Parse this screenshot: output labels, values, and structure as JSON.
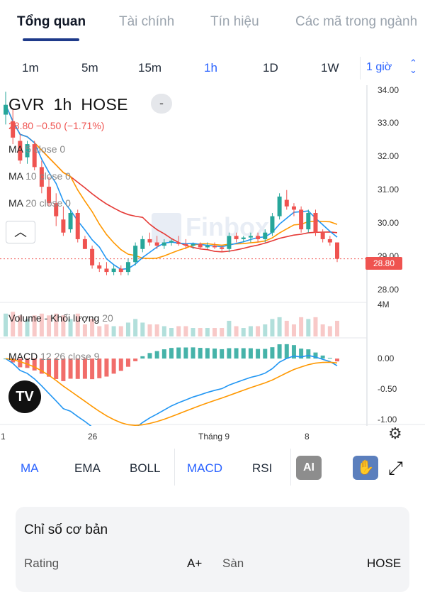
{
  "tabs": [
    "Tổng quan",
    "Tài chính",
    "Tín hiệu",
    "Các mã trong ngành"
  ],
  "intervals": [
    "1m",
    "5m",
    "15m",
    "1h",
    "1D",
    "1W"
  ],
  "interval_select": "1 giờ",
  "chart": {
    "symbol": "GVR",
    "interval": "1h",
    "exchange": "HOSE",
    "collapse_symbol": "-",
    "quote": "28.80  −0.50 (−1.71%)",
    "ma": [
      {
        "name": "MA",
        "params": "5 close 0",
        "color": "#2196f3"
      },
      {
        "name": "MA",
        "params": "10 close 0",
        "color": "#ff9800"
      },
      {
        "name": "MA",
        "params": "20 close 0",
        "color": "#e53935"
      }
    ],
    "volume": {
      "name": "Volume - Khối lượng",
      "params": "20"
    },
    "macd": {
      "name": "MACD",
      "params": "12 26 close 9"
    },
    "watermark": "Finbox",
    "logo": "TV",
    "price_axis": [
      "34.00",
      "33.00",
      "32.00",
      "31.00",
      "30.00",
      "29.00",
      "28.00"
    ],
    "last_price_tag": "28.80",
    "volume_axis": "4M",
    "macd_axis": [
      "0.00",
      "-0.50",
      "-1.00"
    ],
    "x_axis": [
      "1",
      "26",
      "Tháng 9",
      "8"
    ],
    "colors": {
      "up": "#26a69a",
      "down": "#ef5350",
      "ma5": "#2196f3",
      "ma10": "#ff9800",
      "ma20": "#e53935"
    }
  },
  "chart_data": {
    "type": "candlestick",
    "ohlc": [
      [
        33.2,
        33.9,
        32.9,
        33.5
      ],
      [
        33.0,
        33.4,
        32.3,
        32.5
      ],
      [
        32.4,
        32.6,
        31.7,
        31.8
      ],
      [
        31.9,
        32.4,
        31.7,
        32.3
      ],
      [
        32.3,
        32.4,
        31.5,
        31.6
      ],
      [
        31.6,
        31.8,
        30.8,
        31.0
      ],
      [
        31.0,
        31.3,
        30.4,
        30.5
      ],
      [
        30.5,
        30.8,
        29.8,
        30.1
      ],
      [
        30.0,
        30.4,
        29.5,
        29.6
      ],
      [
        29.7,
        30.3,
        29.6,
        30.2
      ],
      [
        30.2,
        30.3,
        29.3,
        29.4
      ],
      [
        29.4,
        29.5,
        29.1,
        29.1
      ],
      [
        29.1,
        29.2,
        28.5,
        28.6
      ],
      [
        28.6,
        28.7,
        28.4,
        28.5
      ],
      [
        28.5,
        28.7,
        28.3,
        28.4
      ],
      [
        28.4,
        28.6,
        28.3,
        28.5
      ],
      [
        28.5,
        28.6,
        28.3,
        28.4
      ],
      [
        28.4,
        28.8,
        28.3,
        28.7
      ],
      [
        28.7,
        29.3,
        28.6,
        29.2
      ],
      [
        29.1,
        29.5,
        29.0,
        29.4
      ],
      [
        29.4,
        29.6,
        29.2,
        29.3
      ],
      [
        29.3,
        29.5,
        29.1,
        29.2
      ],
      [
        29.2,
        29.4,
        29.1,
        29.3
      ],
      [
        29.3,
        29.4,
        29.2,
        29.35
      ],
      [
        29.3,
        29.5,
        29.2,
        29.25
      ],
      [
        29.25,
        29.4,
        29.1,
        29.2
      ],
      [
        29.2,
        29.3,
        29.1,
        29.25
      ],
      [
        29.25,
        29.3,
        29.1,
        29.15
      ],
      [
        29.15,
        29.3,
        29.1,
        29.2
      ],
      [
        29.2,
        29.3,
        29.1,
        29.15
      ],
      [
        29.15,
        29.2,
        29.0,
        29.1
      ],
      [
        29.1,
        29.6,
        29.0,
        29.5
      ],
      [
        29.5,
        29.6,
        29.3,
        29.4
      ],
      [
        29.4,
        29.5,
        29.3,
        29.45
      ],
      [
        29.45,
        29.6,
        29.3,
        29.5
      ],
      [
        29.5,
        29.6,
        29.3,
        29.4
      ],
      [
        29.4,
        29.7,
        29.3,
        29.6
      ],
      [
        29.6,
        30.2,
        29.5,
        30.1
      ],
      [
        30.1,
        30.8,
        30.0,
        30.7
      ],
      [
        30.6,
        30.9,
        30.3,
        30.4
      ],
      [
        30.4,
        30.5,
        30.1,
        30.3
      ],
      [
        30.3,
        30.4,
        29.6,
        29.7
      ],
      [
        29.7,
        30.3,
        29.6,
        30.2
      ],
      [
        30.2,
        30.3,
        29.5,
        29.6
      ],
      [
        29.6,
        29.7,
        29.3,
        29.4
      ],
      [
        29.4,
        29.5,
        29.2,
        29.3
      ],
      [
        29.3,
        29.3,
        28.7,
        28.8
      ]
    ],
    "ylim": [
      27.6,
      34.1
    ],
    "volume_ylim": [
      0,
      4
    ],
    "macd_ylim": [
      -1.05,
      0.25
    ]
  },
  "indicators": [
    "MA",
    "EMA",
    "BOLL",
    "MACD",
    "RSI"
  ],
  "indicator_active": [
    "MA",
    "MACD"
  ],
  "ai_label": "AI",
  "card": {
    "title": "Chỉ số cơ bản",
    "rows": [
      {
        "label": "Rating",
        "value": "A+"
      },
      {
        "label": "Sàn",
        "value": "HOSE"
      }
    ]
  }
}
